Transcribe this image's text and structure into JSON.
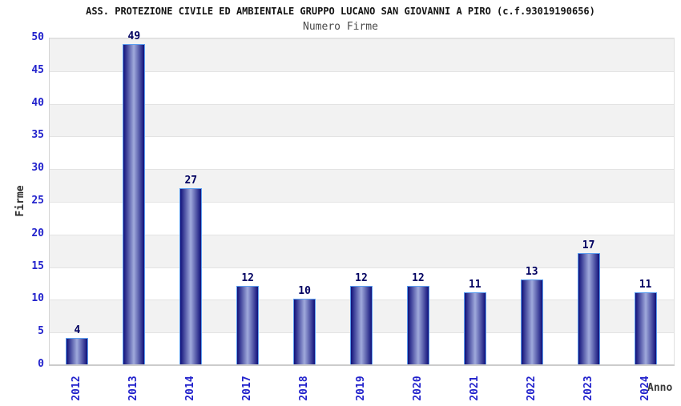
{
  "header": {
    "title": "ASS. PROTEZIONE CIVILE ED AMBIENTALE GRUPPO LUCANO SAN GIOVANNI A PIRO (c.f.93019190656)",
    "subtitle": "Numero Firme"
  },
  "chart_data": {
    "type": "bar",
    "title": "ASS. PROTEZIONE CIVILE ED AMBIENTALE GRUPPO LUCANO SAN GIOVANNI A PIRO (c.f.93019190656)",
    "subtitle": "Numero Firme",
    "categories": [
      "2012",
      "2013",
      "2014",
      "2017",
      "2018",
      "2019",
      "2020",
      "2021",
      "2022",
      "2023",
      "2024"
    ],
    "values": [
      4,
      49,
      27,
      12,
      10,
      12,
      12,
      11,
      13,
      17,
      11
    ],
    "xlabel": "Anno",
    "ylabel": "Firme",
    "ylim": [
      0,
      50
    ],
    "ytick_step": 5,
    "yticks": [
      0,
      5,
      10,
      15,
      20,
      25,
      30,
      35,
      40,
      45,
      50
    ],
    "grid": "horizontal-bands-alternating",
    "legend": "none",
    "colors": {
      "bar_edge": "#10107a",
      "bar_center": "#a0aadc",
      "bar_border": "#5d9ff0",
      "tick_label": "#2222cc",
      "value_label": "#000060",
      "band_gray": "#f2f2f2",
      "grid_line": "#e3e3e3",
      "title": "#141414",
      "subtitle": "#4a4a4a"
    }
  }
}
